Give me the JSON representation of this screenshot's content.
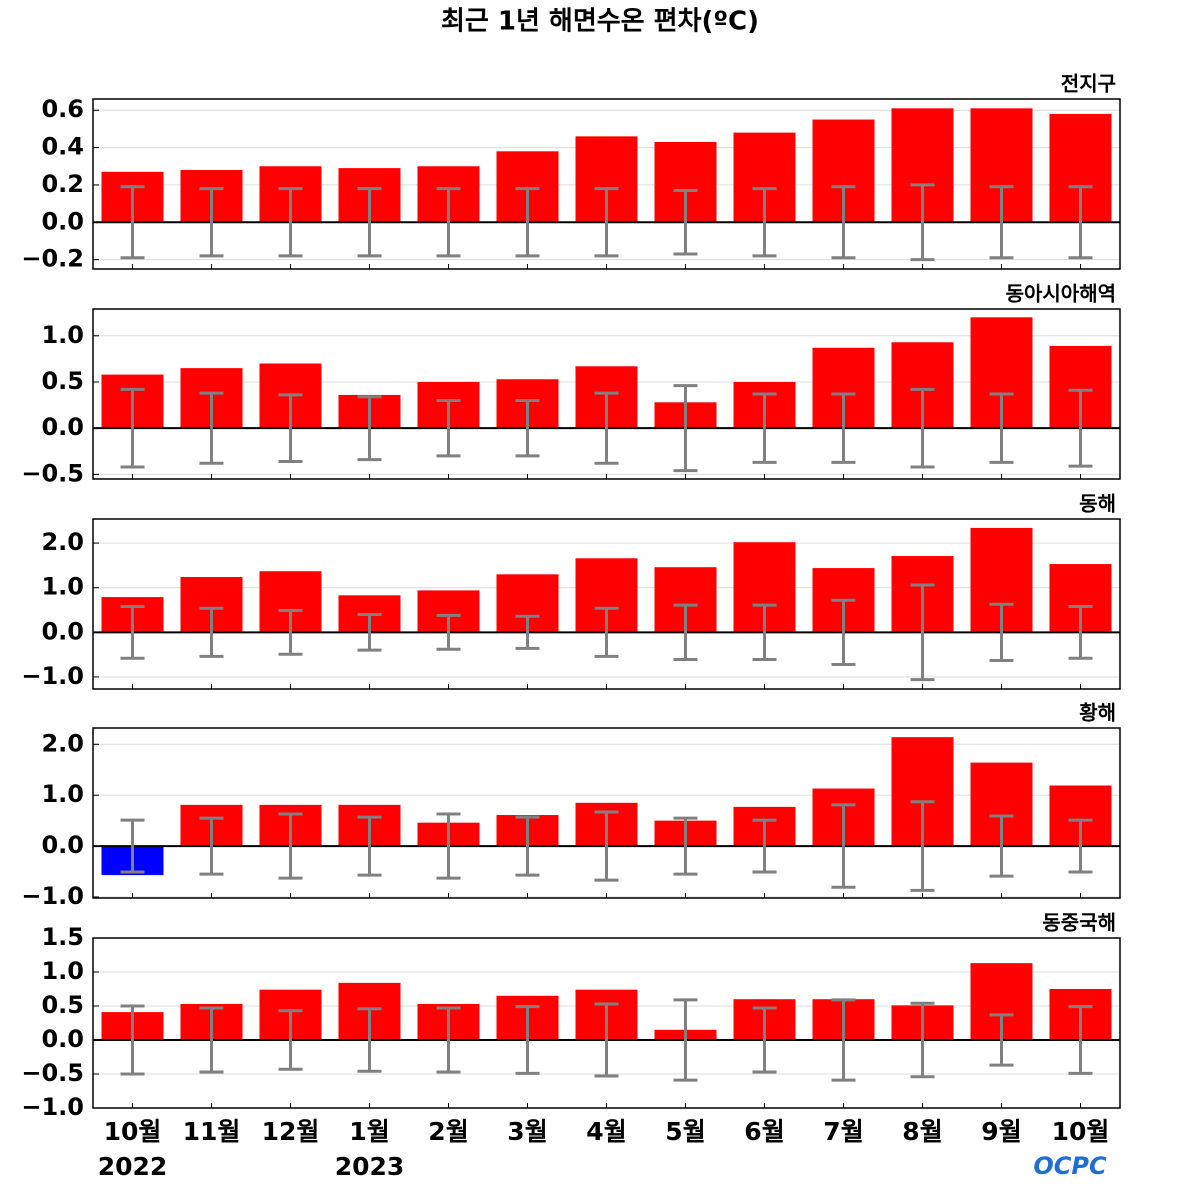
{
  "title": "최근 1년 해면수온 편차(ºC)",
  "categories": [
    "10월",
    "11월",
    "12월",
    "1월",
    "2월",
    "3월",
    "4월",
    "5월",
    "6월",
    "7월",
    "8월",
    "9월",
    "10월"
  ],
  "years": [
    "2022",
    null,
    null,
    "2023",
    null,
    null,
    null,
    null,
    null,
    null,
    null,
    null,
    null
  ],
  "logo": "OCPC",
  "chart_data": [
    {
      "type": "bar",
      "subtitle": "전지구",
      "color": "#ff0000",
      "negative_color": "#0000ff",
      "error_color": "#808080",
      "grid": true,
      "values": [
        0.27,
        0.28,
        0.3,
        0.29,
        0.3,
        0.38,
        0.46,
        0.43,
        0.48,
        0.55,
        0.61,
        0.61,
        0.58
      ],
      "errors": [
        0.19,
        0.18,
        0.18,
        0.18,
        0.18,
        0.18,
        0.18,
        0.17,
        0.18,
        0.19,
        0.2,
        0.19,
        0.19
      ],
      "ylim": [
        -0.25,
        0.66
      ],
      "yticks": [
        {
          "value": -0.2,
          "label": "−0.2"
        },
        {
          "value": 0,
          "label": "0.0"
        },
        {
          "value": 0.2,
          "label": "0.2"
        },
        {
          "value": 0.4,
          "label": "0.4"
        },
        {
          "value": 0.6,
          "label": "0.6"
        }
      ]
    },
    {
      "type": "bar",
      "subtitle": "동아시아해역",
      "color": "#ff0000",
      "negative_color": "#0000ff",
      "error_color": "#808080",
      "grid": true,
      "values": [
        0.58,
        0.65,
        0.7,
        0.36,
        0.5,
        0.53,
        0.67,
        0.28,
        0.5,
        0.87,
        0.93,
        1.2,
        0.89
      ],
      "errors": [
        0.42,
        0.38,
        0.36,
        0.34,
        0.3,
        0.3,
        0.38,
        0.46,
        0.37,
        0.37,
        0.42,
        0.37,
        0.41
      ],
      "ylim": [
        -0.55,
        1.29
      ],
      "yticks": [
        {
          "value": -0.5,
          "label": "−0.5"
        },
        {
          "value": 0,
          "label": "0.0"
        },
        {
          "value": 0.5,
          "label": "0.5"
        },
        {
          "value": 1,
          "label": "1.0"
        }
      ]
    },
    {
      "type": "bar",
      "subtitle": "동해",
      "color": "#ff0000",
      "negative_color": "#0000ff",
      "error_color": "#808080",
      "grid": true,
      "values": [
        0.79,
        1.24,
        1.37,
        0.83,
        0.94,
        1.3,
        1.66,
        1.46,
        2.02,
        1.44,
        1.71,
        2.34,
        1.53
      ],
      "errors": [
        0.58,
        0.54,
        0.49,
        0.4,
        0.38,
        0.36,
        0.54,
        0.61,
        0.61,
        0.72,
        1.06,
        0.63,
        0.58
      ],
      "ylim": [
        -1.27,
        2.54
      ],
      "yticks": [
        {
          "value": -1,
          "label": "−1.0"
        },
        {
          "value": 0,
          "label": "0.0"
        },
        {
          "value": 1,
          "label": "1.0"
        },
        {
          "value": 2,
          "label": "2.0"
        }
      ]
    },
    {
      "type": "bar",
      "subtitle": "황해",
      "color": "#ff0000",
      "negative_color": "#0000ff",
      "error_color": "#808080",
      "grid": true,
      "values": [
        -0.57,
        0.81,
        0.81,
        0.81,
        0.46,
        0.61,
        0.85,
        0.5,
        0.77,
        1.13,
        2.14,
        1.64,
        1.19
      ],
      "errors": [
        0.51,
        0.55,
        0.63,
        0.57,
        0.63,
        0.57,
        0.67,
        0.55,
        0.51,
        0.81,
        0.87,
        0.59,
        0.51
      ],
      "ylim": [
        -1.02,
        2.32
      ],
      "yticks": [
        {
          "value": -1,
          "label": "−1.0"
        },
        {
          "value": 0,
          "label": "0.0"
        },
        {
          "value": 1,
          "label": "1.0"
        },
        {
          "value": 2,
          "label": "2.0"
        }
      ]
    },
    {
      "type": "bar",
      "subtitle": "동중국해",
      "color": "#ff0000",
      "negative_color": "#0000ff",
      "error_color": "#808080",
      "grid": true,
      "values": [
        0.41,
        0.53,
        0.74,
        0.84,
        0.53,
        0.65,
        0.74,
        0.15,
        0.6,
        0.6,
        0.51,
        1.13,
        0.75
      ],
      "errors": [
        0.5,
        0.47,
        0.43,
        0.46,
        0.47,
        0.49,
        0.53,
        0.59,
        0.47,
        0.59,
        0.54,
        0.37,
        0.49
      ],
      "ylim": [
        -1.0,
        1.5
      ],
      "yticks": [
        {
          "value": -1,
          "label": "−1.0"
        },
        {
          "value": -0.5,
          "label": "−0.5"
        },
        {
          "value": 0,
          "label": "0.0"
        },
        {
          "value": 0.5,
          "label": "0.5"
        },
        {
          "value": 1,
          "label": "1.0"
        },
        {
          "value": 1.5,
          "label": "1.5"
        }
      ]
    }
  ]
}
